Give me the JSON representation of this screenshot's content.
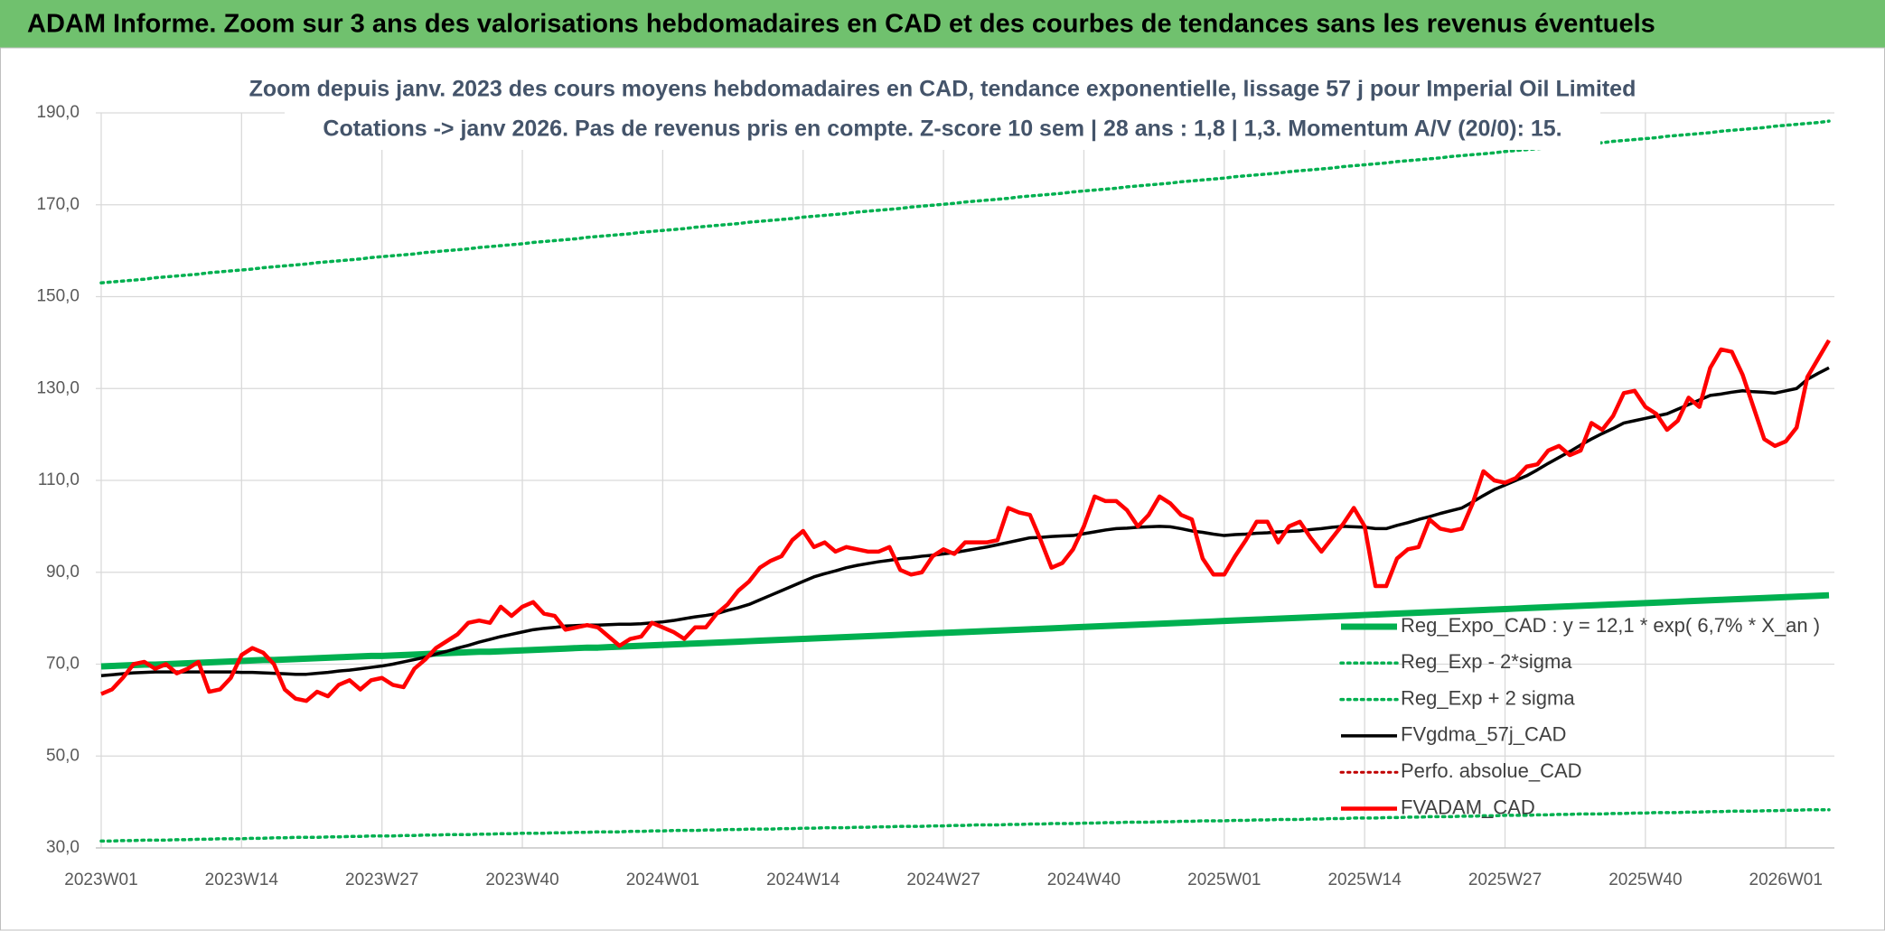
{
  "chart_data": {
    "type": "line",
    "title": "ADAM Informe. Zoom sur 3 ans des valorisations hebdomadaires en CAD et des courbes de tendances sans les revenus éventuels",
    "subtitle": [
      "Zoom depuis janv. 2023 des cours moyens hebdomadaires en CAD, tendance exponentielle, lissage 57 j pour Imperial Oil Limited",
      "Cotations -> janv 2026. Pas de revenus pris en compte. Z-score 10 sem | 28 ans : 1,8 | 1,3. Momentum A/V (20/0): 15."
    ],
    "categories": [
      "2023W01",
      null,
      null,
      null,
      null,
      null,
      null,
      null,
      null,
      null,
      null,
      null,
      null,
      "2023W14",
      null,
      null,
      null,
      null,
      null,
      null,
      null,
      null,
      null,
      null,
      null,
      null,
      "2023W27",
      null,
      null,
      null,
      null,
      null,
      null,
      null,
      null,
      null,
      null,
      null,
      null,
      "2023W40",
      null,
      null,
      null,
      null,
      null,
      null,
      null,
      null,
      null,
      null,
      null,
      null,
      "2024W01",
      null,
      null,
      null,
      null,
      null,
      null,
      null,
      null,
      null,
      null,
      null,
      null,
      "2024W14",
      null,
      null,
      null,
      null,
      null,
      null,
      null,
      null,
      null,
      null,
      null,
      null,
      "2024W27",
      null,
      null,
      null,
      null,
      null,
      null,
      null,
      null,
      null,
      null,
      null,
      null,
      "2024W40",
      null,
      null,
      null,
      null,
      null,
      null,
      null,
      null,
      null,
      null,
      null,
      null,
      "2025W01",
      null,
      null,
      null,
      null,
      null,
      null,
      null,
      null,
      null,
      null,
      null,
      null,
      "2025W14",
      null,
      null,
      null,
      null,
      null,
      null,
      null,
      null,
      null,
      null,
      null,
      null,
      "2025W27",
      null,
      null,
      null,
      null,
      null,
      null,
      null,
      null,
      null,
      null,
      null,
      null,
      "2025W40",
      null,
      null,
      null,
      null,
      null,
      null,
      null,
      null,
      null,
      null,
      null,
      null,
      "2026W01",
      null,
      null,
      null,
      null
    ],
    "ylim": [
      30,
      190
    ],
    "yticks": [
      {
        "value": 30,
        "label": "30,0"
      },
      {
        "value": 50,
        "label": "50,0"
      },
      {
        "value": 70,
        "label": "70,0"
      },
      {
        "value": 90,
        "label": "90,0"
      },
      {
        "value": 110,
        "label": "110,0"
      },
      {
        "value": 130,
        "label": "130,0"
      },
      {
        "value": 150,
        "label": "150,0"
      },
      {
        "value": 170,
        "label": "170,0"
      },
      {
        "value": 190,
        "label": "190,0"
      }
    ],
    "grid": true,
    "legend": "lower right",
    "series": [
      {
        "name": "Reg_Expo_CAD : y = 12,1 * exp( 6,7% *  X_an )",
        "color": "#00b050",
        "style": "solid",
        "values": [
          69.5,
          69.6,
          69.7,
          69.8,
          69.9,
          69.9,
          70.0,
          70.1,
          70.2,
          70.3,
          70.4,
          70.5,
          70.6,
          70.7,
          70.8,
          70.9,
          70.9,
          71.0,
          71.1,
          71.2,
          71.3,
          71.4,
          71.5,
          71.6,
          71.7,
          71.8,
          71.8,
          71.9,
          72.0,
          72.1,
          72.2,
          72.3,
          72.4,
          72.5,
          72.6,
          72.7,
          72.7,
          72.8,
          72.9,
          73.0,
          73.1,
          73.2,
          73.3,
          73.4,
          73.5,
          73.6,
          73.6,
          73.7,
          73.8,
          73.9,
          74.0,
          74.1,
          74.2,
          74.3,
          74.4,
          74.5,
          74.6,
          74.7,
          74.8,
          74.9,
          75.0,
          75.1,
          75.2,
          75.3,
          75.4,
          75.5,
          75.6,
          75.7,
          75.8,
          75.9,
          76.0,
          76.1,
          76.2,
          76.3,
          76.4,
          76.5,
          76.6,
          76.7,
          76.8,
          76.9,
          77.0,
          77.1,
          77.2,
          77.3,
          77.4,
          77.5,
          77.6,
          77.7,
          77.8,
          77.9,
          78.0,
          78.1,
          78.2,
          78.3,
          78.4,
          78.5,
          78.6,
          78.7,
          78.8,
          78.9,
          79.0,
          79.1,
          79.2,
          79.3,
          79.4,
          79.5,
          79.6,
          79.7,
          79.8,
          79.9,
          80.0,
          80.1,
          80.2,
          80.3,
          80.4,
          80.5,
          80.6,
          80.7,
          80.8,
          80.9,
          81.0,
          81.1,
          81.2,
          81.3,
          81.4,
          81.5,
          81.6,
          81.7,
          81.8,
          81.9,
          82.0,
          82.1,
          82.2,
          82.3,
          82.4,
          82.5,
          82.6,
          82.7,
          82.8,
          82.9,
          83.0,
          83.1,
          83.2,
          83.3,
          83.4,
          83.5,
          83.6,
          83.7,
          83.8,
          83.9,
          84.0,
          84.1,
          84.2,
          84.3,
          84.4,
          84.5,
          84.6,
          84.7,
          84.8,
          84.9,
          85.0
        ]
      },
      {
        "name": "Reg_Exp - 2*sigma",
        "color": "#00b050",
        "style": "dotted",
        "values": [
          31.5,
          31.5,
          31.6,
          31.6,
          31.7,
          31.7,
          31.7,
          31.8,
          31.8,
          31.9,
          31.9,
          32.0,
          32.0,
          32.0,
          32.1,
          32.1,
          32.2,
          32.2,
          32.3,
          32.3,
          32.3,
          32.4,
          32.4,
          32.5,
          32.5,
          32.6,
          32.6,
          32.6,
          32.7,
          32.7,
          32.8,
          32.8,
          32.9,
          32.9,
          32.9,
          33.0,
          33.0,
          33.1,
          33.1,
          33.2,
          33.2,
          33.2,
          33.3,
          33.3,
          33.4,
          33.4,
          33.5,
          33.5,
          33.5,
          33.6,
          33.6,
          33.7,
          33.7,
          33.8,
          33.8,
          33.8,
          33.9,
          33.9,
          34.0,
          34.0,
          34.1,
          34.1,
          34.1,
          34.2,
          34.2,
          34.3,
          34.3,
          34.4,
          34.4,
          34.4,
          34.5,
          34.5,
          34.6,
          34.6,
          34.7,
          34.7,
          34.7,
          34.8,
          34.8,
          34.9,
          34.9,
          35.0,
          35.0,
          35.0,
          35.1,
          35.1,
          35.2,
          35.2,
          35.3,
          35.3,
          35.3,
          35.4,
          35.4,
          35.5,
          35.5,
          35.6,
          35.6,
          35.6,
          35.7,
          35.7,
          35.8,
          35.8,
          35.9,
          35.9,
          35.9,
          36.0,
          36.0,
          36.1,
          36.1,
          36.2,
          36.2,
          36.2,
          36.3,
          36.3,
          36.4,
          36.4,
          36.5,
          36.5,
          36.5,
          36.6,
          36.6,
          36.7,
          36.7,
          36.8,
          36.8,
          36.8,
          36.9,
          36.9,
          37.0,
          37.0,
          37.1,
          37.1,
          37.1,
          37.2,
          37.2,
          37.3,
          37.3,
          37.4,
          37.4,
          37.4,
          37.5,
          37.5,
          37.6,
          37.6,
          37.7,
          37.7,
          37.7,
          37.8,
          37.8,
          37.9,
          37.9,
          38.0,
          38.0,
          38.0,
          38.1,
          38.1,
          38.2,
          38.2,
          38.3,
          38.3,
          38.3
        ]
      },
      {
        "name": "Reg_Exp + 2 sigma",
        "color": "#00b050",
        "style": "dotted",
        "values": [
          153.0,
          153.2,
          153.4,
          153.6,
          153.8,
          154.1,
          154.3,
          154.5,
          154.7,
          154.9,
          155.2,
          155.4,
          155.6,
          155.8,
          156.0,
          156.3,
          156.5,
          156.7,
          156.9,
          157.1,
          157.4,
          157.6,
          157.8,
          158.0,
          158.2,
          158.5,
          158.7,
          158.9,
          159.1,
          159.3,
          159.6,
          159.8,
          160.0,
          160.2,
          160.4,
          160.7,
          160.9,
          161.1,
          161.3,
          161.5,
          161.8,
          162.0,
          162.2,
          162.4,
          162.6,
          162.9,
          163.1,
          163.3,
          163.5,
          163.7,
          164.0,
          164.2,
          164.4,
          164.6,
          164.8,
          165.1,
          165.3,
          165.5,
          165.7,
          165.9,
          166.2,
          166.4,
          166.6,
          166.8,
          167.0,
          167.3,
          167.5,
          167.7,
          167.9,
          168.1,
          168.4,
          168.6,
          168.8,
          169.0,
          169.2,
          169.5,
          169.7,
          169.9,
          170.1,
          170.3,
          170.6,
          170.8,
          171.0,
          171.2,
          171.4,
          171.7,
          171.9,
          172.1,
          172.3,
          172.5,
          172.8,
          173.0,
          173.2,
          173.4,
          173.6,
          173.9,
          174.1,
          174.3,
          174.5,
          174.7,
          175.0,
          175.2,
          175.4,
          175.6,
          175.8,
          176.1,
          176.3,
          176.5,
          176.7,
          176.9,
          177.2,
          177.4,
          177.6,
          177.8,
          178.0,
          178.3,
          178.5,
          178.7,
          178.9,
          179.1,
          179.4,
          179.6,
          179.8,
          180.0,
          180.2,
          180.5,
          180.7,
          180.9,
          181.1,
          181.3,
          181.6,
          181.8,
          182.0,
          182.2,
          182.4,
          182.7,
          182.9,
          183.1,
          183.3,
          183.5,
          183.8,
          184.0,
          184.2,
          184.4,
          184.6,
          184.9,
          185.1,
          185.3,
          185.5,
          185.7,
          186.0,
          186.2,
          186.4,
          186.6,
          186.8,
          187.1,
          187.3,
          187.5,
          187.7,
          187.9,
          188.2
        ]
      },
      {
        "name": "FVgdma_57j_CAD",
        "color": "#000000",
        "style": "solid",
        "values": [
          67.5,
          67.7,
          67.9,
          68.1,
          68.2,
          68.3,
          68.3,
          68.3,
          68.3,
          68.3,
          68.3,
          68.3,
          68.3,
          68.2,
          68.2,
          68.1,
          68,
          67.9,
          67.8,
          67.8,
          68,
          68.2,
          68.5,
          68.7,
          69,
          69.3,
          69.6,
          70,
          70.5,
          71,
          71.5,
          72.2,
          72.8,
          73.5,
          74.1,
          74.8,
          75.4,
          76,
          76.5,
          77,
          77.5,
          77.8,
          78,
          78.3,
          78.4,
          78.5,
          78.5,
          78.6,
          78.7,
          78.7,
          78.8,
          79,
          79.2,
          79.5,
          79.9,
          80.3,
          80.6,
          81,
          81.7,
          82.3,
          83,
          84,
          85,
          86,
          87,
          88,
          89,
          89.7,
          90.3,
          91,
          91.5,
          91.9,
          92.3,
          92.6,
          93,
          93.2,
          93.5,
          93.7,
          94,
          94.3,
          94.7,
          95.1,
          95.5,
          96,
          96.5,
          97,
          97.5,
          97.6,
          97.8,
          97.9,
          98,
          98.4,
          98.8,
          99.2,
          99.5,
          99.6,
          99.8,
          99.9,
          100,
          99.9,
          99.5,
          99,
          98.7,
          98.3,
          98,
          98.2,
          98.3,
          98.5,
          98.6,
          98.8,
          98.9,
          99,
          99.3,
          99.5,
          99.8,
          100,
          99.9,
          99.8,
          99.5,
          99.5,
          100.2,
          100.8,
          101.5,
          102.1,
          102.8,
          103.4,
          104,
          105.3,
          106.7,
          108,
          109,
          110,
          111,
          112.3,
          113.7,
          115,
          116.3,
          117.7,
          119,
          120.2,
          121.3,
          122.5,
          123,
          123.5,
          124,
          124.5,
          125.5,
          126.5,
          127.5,
          128.5,
          128.8,
          129.2,
          129.5,
          129.3,
          129.2,
          129,
          129.5,
          130,
          132,
          133.3,
          134.5
        ]
      },
      {
        "name": "Perfo. absolue_CAD",
        "color": "#c00000",
        "style": "dotted",
        "values": [
          null,
          null,
          null,
          null,
          null,
          null,
          null,
          null,
          null,
          null,
          null,
          null,
          null,
          null,
          null,
          null,
          null,
          null,
          null,
          null,
          null,
          null,
          null,
          null,
          null,
          null,
          null,
          null,
          null,
          null,
          null,
          null,
          null,
          null,
          null,
          null,
          null,
          null,
          null,
          null,
          null,
          null,
          null,
          null,
          null,
          null,
          null,
          null,
          null,
          null,
          null,
          null,
          null,
          null,
          null,
          null,
          null,
          null,
          null,
          null,
          null,
          null,
          null,
          null,
          null,
          null,
          null,
          null,
          null,
          null,
          null,
          null,
          null,
          null,
          null,
          null,
          null,
          null,
          null,
          null,
          null,
          null,
          null,
          null,
          null,
          null,
          null,
          null,
          null,
          null,
          null,
          null,
          null,
          null,
          null,
          null,
          null,
          null,
          null,
          null,
          null,
          null,
          null,
          null,
          null,
          null,
          null,
          null,
          null,
          null,
          null,
          null,
          null,
          null,
          null,
          null,
          null,
          null,
          null,
          null,
          null,
          null,
          null,
          null,
          null,
          null,
          null,
          null,
          null,
          null,
          null,
          null,
          null,
          null,
          null,
          null,
          null,
          null,
          null,
          null,
          null,
          null,
          null,
          null,
          null,
          null,
          null,
          null,
          null,
          null,
          null,
          null,
          null,
          null,
          null,
          null,
          null,
          null,
          null,
          null,
          null
        ]
      },
      {
        "name": "FVADAM_CAD",
        "color": "#ff0000",
        "style": "solid",
        "values": [
          63.5,
          64.5,
          67,
          70,
          70.5,
          69,
          70,
          68,
          69,
          70.5,
          64,
          64.5,
          67,
          72,
          73.5,
          72.5,
          70,
          64.5,
          62.5,
          62,
          64,
          63,
          65.5,
          66.5,
          64.5,
          66.5,
          67,
          65.5,
          65,
          69,
          71,
          73.5,
          75,
          76.5,
          79,
          79.5,
          79,
          82.5,
          80.5,
          82.5,
          83.5,
          81,
          80.5,
          77.5,
          78,
          78.5,
          78,
          76,
          74,
          75.5,
          76,
          79,
          78,
          77,
          75.5,
          78,
          78,
          81,
          83,
          86,
          88,
          91,
          92.5,
          93.5,
          97,
          99,
          95.5,
          96.5,
          94.5,
          95.5,
          95,
          94.5,
          94.5,
          95.5,
          90.5,
          89.5,
          90,
          93.5,
          95,
          94,
          96.5,
          96.5,
          96.5,
          97,
          104,
          103,
          102.5,
          97,
          91,
          92,
          95,
          100,
          106.5,
          105.5,
          105.5,
          103.5,
          100,
          102.5,
          106.5,
          105,
          102.5,
          101.5,
          93,
          89.5,
          89.5,
          93.5,
          97,
          101,
          101,
          96.5,
          100,
          101,
          97.5,
          94.5,
          97.5,
          100.5,
          104,
          100,
          87,
          87,
          93,
          95,
          95.5,
          101.5,
          99.5,
          99,
          99.5,
          105,
          112,
          110,
          109.5,
          110.5,
          113,
          113.5,
          116.5,
          117.5,
          115.5,
          116.5,
          122.5,
          121,
          124,
          129,
          129.5,
          126,
          124.5,
          121,
          123,
          128,
          126,
          134.5,
          138.5,
          138,
          133,
          126,
          119,
          117.5,
          118.5,
          121.5,
          132.5,
          136.5,
          140.5
        ]
      }
    ]
  }
}
